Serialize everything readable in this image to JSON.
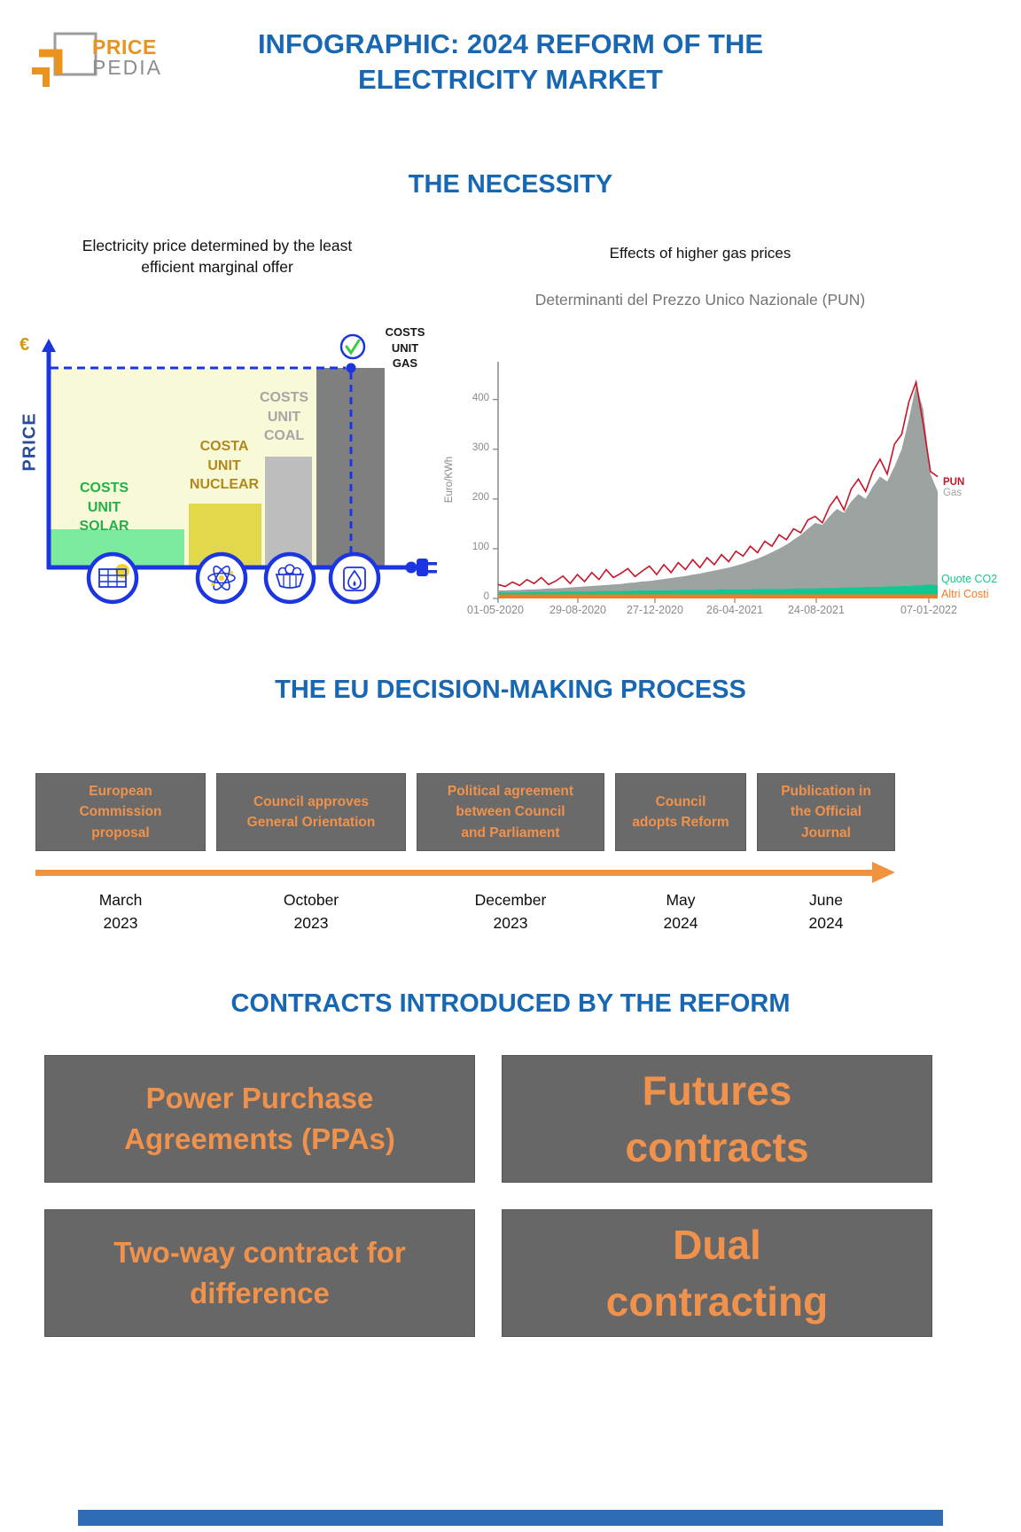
{
  "brand": {
    "word_top": "PRICE",
    "word_bottom": "PEDIA"
  },
  "header": {
    "title": "INFOGRAPHIC: 2024 REFORM OF THE\nELECTRICITY MARKET"
  },
  "necessity": {
    "heading": "THE NECESSITY",
    "marginal_chart": {
      "title": "Electricity price determined by the least\nefficient marginal offer",
      "euro_symbol": "€",
      "y_axis_label": "PRICE",
      "bar_labels": {
        "solar": "COSTS\nUNIT\nSOLAR",
        "nuclear": "COSTA\nUNIT\nNUCLEAR",
        "coal": "COSTS\nUNIT\nCOAL",
        "gas": "COSTS\nUNIT\nGAS"
      }
    },
    "pun_chart": {
      "caption": "Effects of higher gas prices",
      "title": "Determinanti del Prezzo Unico Nazionale (PUN)",
      "y_axis_label": "Euro/KWh",
      "legend": {
        "pun": "PUN",
        "gas": "Gas",
        "co2": "Quote CO2",
        "altri": "Altri Costi"
      }
    }
  },
  "process": {
    "heading": "THE EU DECISION-MAKING PROCESS",
    "steps": [
      {
        "label": "European\nCommission\nproposal",
        "date": "March\n2023"
      },
      {
        "label": "Council approves\nGeneral Orientation",
        "date": "October\n2023"
      },
      {
        "label": "Political agreement\nbetween Council\nand Parliament",
        "date": "December\n2023"
      },
      {
        "label": "Council\nadopts Reform",
        "date": "May\n2024"
      },
      {
        "label": "Publication in\nthe Official\nJournal",
        "date": "June\n2024"
      }
    ]
  },
  "contracts": {
    "heading": "CONTRACTS INTRODUCED BY THE REFORM",
    "boxes": [
      "Power Purchase\nAgreements (PPAs)",
      "Futures\ncontracts",
      "Two-way contract for\ndifference",
      "Dual\ncontracting"
    ]
  },
  "colors": {
    "heading_blue": "#1767B2",
    "orange_text": "#F0924C",
    "box_gray": "#6A6A6A",
    "axis_blue": "#1B35E0",
    "solar_green": "#7BEC9E",
    "nuclear_yellow": "#E1D84C",
    "coal_gray": "#BDBDBD",
    "gas_gray": "#7F7F7F",
    "pun_red": "#C81428",
    "gas_area_gray": "#9CA3A0",
    "co2_green": "#14C78F",
    "altri_orange": "#F47B20"
  },
  "chart_data": [
    {
      "type": "bar",
      "title": "Electricity price determined by the least efficient marginal offer",
      "categories": [
        "Solar",
        "Nuclear",
        "Coal",
        "Gas"
      ],
      "values": [
        20,
        33,
        57,
        103
      ],
      "xlabel": "",
      "ylabel": "PRICE (€)",
      "ylim": [
        0,
        110
      ],
      "annotation": "dashed marginal price line set by the gas unit"
    },
    {
      "type": "area",
      "title": "Determinanti del Prezzo Unico Nazionale (PUN)",
      "xlabel": "",
      "ylabel": "Euro/KWh",
      "ylim": [
        0,
        470
      ],
      "yticks": [
        0,
        100,
        200,
        300,
        400
      ],
      "xtick_labels": [
        "01-05-2020",
        "29-08-2020",
        "27-12-2020",
        "26-04-2021",
        "24-08-2021",
        "07-01-2022"
      ],
      "legend_position": "right",
      "series": [
        {
          "name": "PUN",
          "type": "line",
          "color": "#C81428",
          "values": [
            28,
            24,
            33,
            26,
            38,
            30,
            42,
            28,
            35,
            45,
            30,
            48,
            34,
            52,
            38,
            58,
            42,
            50,
            60,
            44,
            55,
            65,
            48,
            68,
            52,
            72,
            58,
            78,
            62,
            82,
            68,
            88,
            74,
            95,
            85,
            105,
            92,
            115,
            105,
            128,
            118,
            140,
            132,
            158,
            165,
            152,
            185,
            205,
            178,
            220,
            240,
            215,
            255,
            280,
            250,
            310,
            330,
            395,
            435,
            350,
            255,
            245
          ]
        },
        {
          "name": "Gas",
          "type": "area",
          "color": "#9CA3A0",
          "values": [
            16,
            16,
            17,
            17,
            18,
            18,
            19,
            20,
            20,
            21,
            22,
            23,
            24,
            25,
            26,
            27,
            28,
            29,
            31,
            32,
            34,
            35,
            37,
            39,
            41,
            43,
            45,
            48,
            50,
            53,
            56,
            59,
            62,
            66,
            70,
            75,
            80,
            86,
            93,
            100,
            108,
            118,
            128,
            140,
            152,
            148,
            165,
            180,
            172,
            195,
            210,
            200,
            225,
            245,
            235,
            265,
            300,
            360,
            430,
            380,
            250,
            215
          ]
        },
        {
          "name": "Quote CO2",
          "type": "area",
          "color": "#14C78F",
          "values": [
            12,
            12,
            12,
            12,
            13,
            13,
            13,
            13,
            13,
            14,
            14,
            14,
            14,
            14,
            15,
            15,
            15,
            15,
            15,
            16,
            16,
            16,
            16,
            16,
            16,
            17,
            17,
            17,
            17,
            17,
            17,
            18,
            18,
            18,
            18,
            18,
            19,
            19,
            19,
            19,
            19,
            20,
            20,
            20,
            20,
            21,
            21,
            21,
            22,
            22,
            22,
            23,
            23,
            23,
            24,
            24,
            25,
            25,
            26,
            27,
            28,
            26
          ]
        },
        {
          "name": "Altri Costi",
          "type": "area",
          "color": "#F47B20",
          "constant": 8
        }
      ]
    }
  ]
}
